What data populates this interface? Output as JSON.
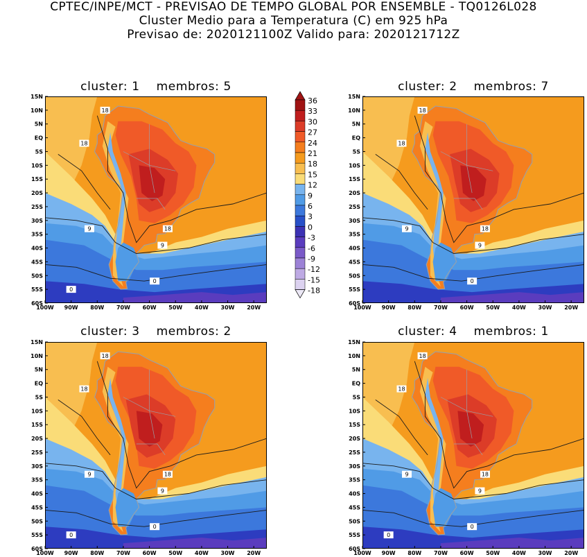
{
  "header": {
    "line1": "CPTEC/INPE/MCT - PREVISAO DE TEMPO GLOBAL POR ENSEMBLE - TQ0126L028",
    "line2": "Cluster Medio para a Temperatura (C) em 925 hPa",
    "line3": "Previsao de: 2020121100Z   Valido para: 2020121712Z"
  },
  "panels": [
    {
      "cluster_label": "cluster:",
      "cluster": "1",
      "members_label": "membros:",
      "members": "5"
    },
    {
      "cluster_label": "cluster:",
      "cluster": "2",
      "members_label": "membros:",
      "members": "7"
    },
    {
      "cluster_label": "cluster:",
      "cluster": "3",
      "members_label": "membros:",
      "members": "2"
    },
    {
      "cluster_label": "cluster:",
      "cluster": "4",
      "members_label": "membros:",
      "members": "1"
    }
  ],
  "lat_ticks": [
    "15N",
    "10N",
    "5N",
    "EQ",
    "5S",
    "10S",
    "15S",
    "20S",
    "25S",
    "30S",
    "35S",
    "40S",
    "45S",
    "50S",
    "55S",
    "60S"
  ],
  "lon_ticks": [
    "100W",
    "90W",
    "80W",
    "70W",
    "60W",
    "50W",
    "40W",
    "30W",
    "20W"
  ],
  "colorbar": {
    "levels": [
      36,
      33,
      30,
      27,
      24,
      21,
      18,
      15,
      12,
      9,
      6,
      3,
      0,
      -3,
      -6,
      -9,
      -12,
      -15,
      -18
    ],
    "labels": [
      "36",
      "33",
      "30",
      "27",
      "24",
      "21",
      "18",
      "15",
      "12",
      "9",
      "6",
      "3",
      "0",
      "-3",
      "-6",
      "-9",
      "-12",
      "-15",
      "-18"
    ],
    "colors": [
      "#a01414",
      "#c01e1e",
      "#dc3c28",
      "#f05a28",
      "#f57e1e",
      "#f59b1e",
      "#f8be50",
      "#fadc78",
      "#78b4ee",
      "#509be6",
      "#3c78dc",
      "#2850c8",
      "#3c32b4",
      "#5a3cbe",
      "#7a5ac8",
      "#9c82d6",
      "#beaae4",
      "#dcd2f0"
    ]
  },
  "contour_labels": [
    [
      "18",
      "18",
      "18",
      "9",
      "9",
      "0",
      "0"
    ],
    [
      "18",
      "18",
      "18",
      "9",
      "9",
      "0"
    ],
    [
      "18",
      "18",
      "18",
      "9",
      "9",
      "0",
      "0"
    ],
    [
      "18",
      "18",
      "18",
      "9",
      "9",
      "0",
      "0"
    ]
  ],
  "map_colors": {
    "ocean_warm": "#f59b1e",
    "land_hot": "#dc3c28",
    "coastline": "#9aa0a8"
  }
}
